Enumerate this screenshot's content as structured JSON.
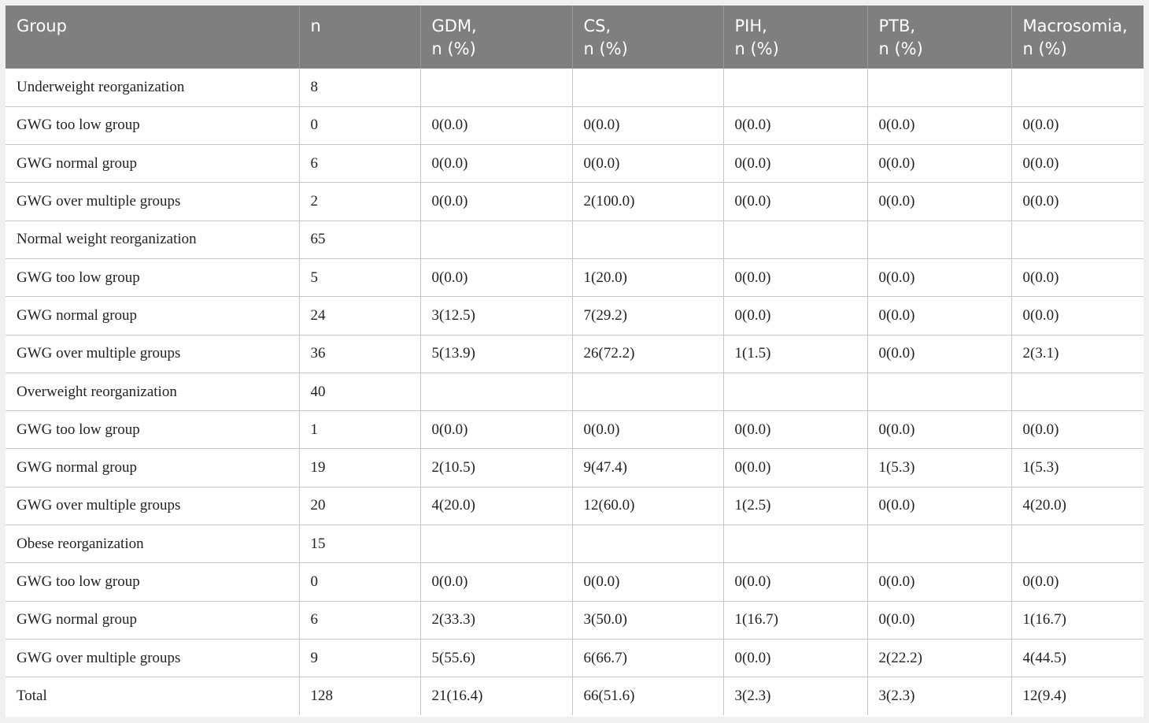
{
  "table": {
    "headers": [
      [
        "Group",
        ""
      ],
      [
        "n",
        ""
      ],
      [
        "GDM,",
        "n (%)"
      ],
      [
        "CS,",
        "n (%)"
      ],
      [
        "PIH,",
        "n (%)"
      ],
      [
        "PTB,",
        "n (%)"
      ],
      [
        "Macrosomia,",
        "n (%)"
      ]
    ],
    "rows": [
      [
        "Underweight reorganization",
        "8",
        "",
        "",
        "",
        "",
        ""
      ],
      [
        "GWG too low group",
        "0",
        "0(0.0)",
        "0(0.0)",
        "0(0.0)",
        "0(0.0)",
        "0(0.0)"
      ],
      [
        "GWG normal group",
        "6",
        "0(0.0)",
        "0(0.0)",
        "0(0.0)",
        "0(0.0)",
        "0(0.0)"
      ],
      [
        "GWG over multiple groups",
        "2",
        "0(0.0)",
        "2(100.0)",
        "0(0.0)",
        "0(0.0)",
        "0(0.0)"
      ],
      [
        "Normal weight reorganization",
        "65",
        "",
        "",
        "",
        "",
        ""
      ],
      [
        "GWG too low group",
        "5",
        "0(0.0)",
        "1(20.0)",
        "0(0.0)",
        "0(0.0)",
        "0(0.0)"
      ],
      [
        "GWG normal group",
        "24",
        "3(12.5)",
        "7(29.2)",
        "0(0.0)",
        "0(0.0)",
        "0(0.0)"
      ],
      [
        "GWG over multiple groups",
        "36",
        "5(13.9)",
        "26(72.2)",
        "1(1.5)",
        "0(0.0)",
        "2(3.1)"
      ],
      [
        "Overweight reorganization",
        "40",
        "",
        "",
        "",
        "",
        ""
      ],
      [
        "GWG too low group",
        "1",
        "0(0.0)",
        "0(0.0)",
        "0(0.0)",
        "0(0.0)",
        "0(0.0)"
      ],
      [
        "GWG normal group",
        "19",
        "2(10.5)",
        "9(47.4)",
        "0(0.0)",
        "1(5.3)",
        "1(5.3)"
      ],
      [
        "GWG over multiple groups",
        "20",
        "4(20.0)",
        "12(60.0)",
        "1(2.5)",
        "0(0.0)",
        "4(20.0)"
      ],
      [
        "Obese reorganization",
        "15",
        "",
        "",
        "",
        "",
        ""
      ],
      [
        "GWG too low group",
        "0",
        "0(0.0)",
        "0(0.0)",
        "0(0.0)",
        "0(0.0)",
        "0(0.0)"
      ],
      [
        "GWG normal group",
        "6",
        "2(33.3)",
        "3(50.0)",
        "1(16.7)",
        "0(0.0)",
        "1(16.7)"
      ],
      [
        "GWG over multiple groups",
        "9",
        "5(55.6)",
        "6(66.7)",
        "0(0.0)",
        "2(22.2)",
        "4(44.5)"
      ],
      [
        "Total",
        "128",
        "21(16.4)",
        "66(51.6)",
        "3(2.3)",
        "3(2.3)",
        "12(9.4)"
      ]
    ]
  }
}
